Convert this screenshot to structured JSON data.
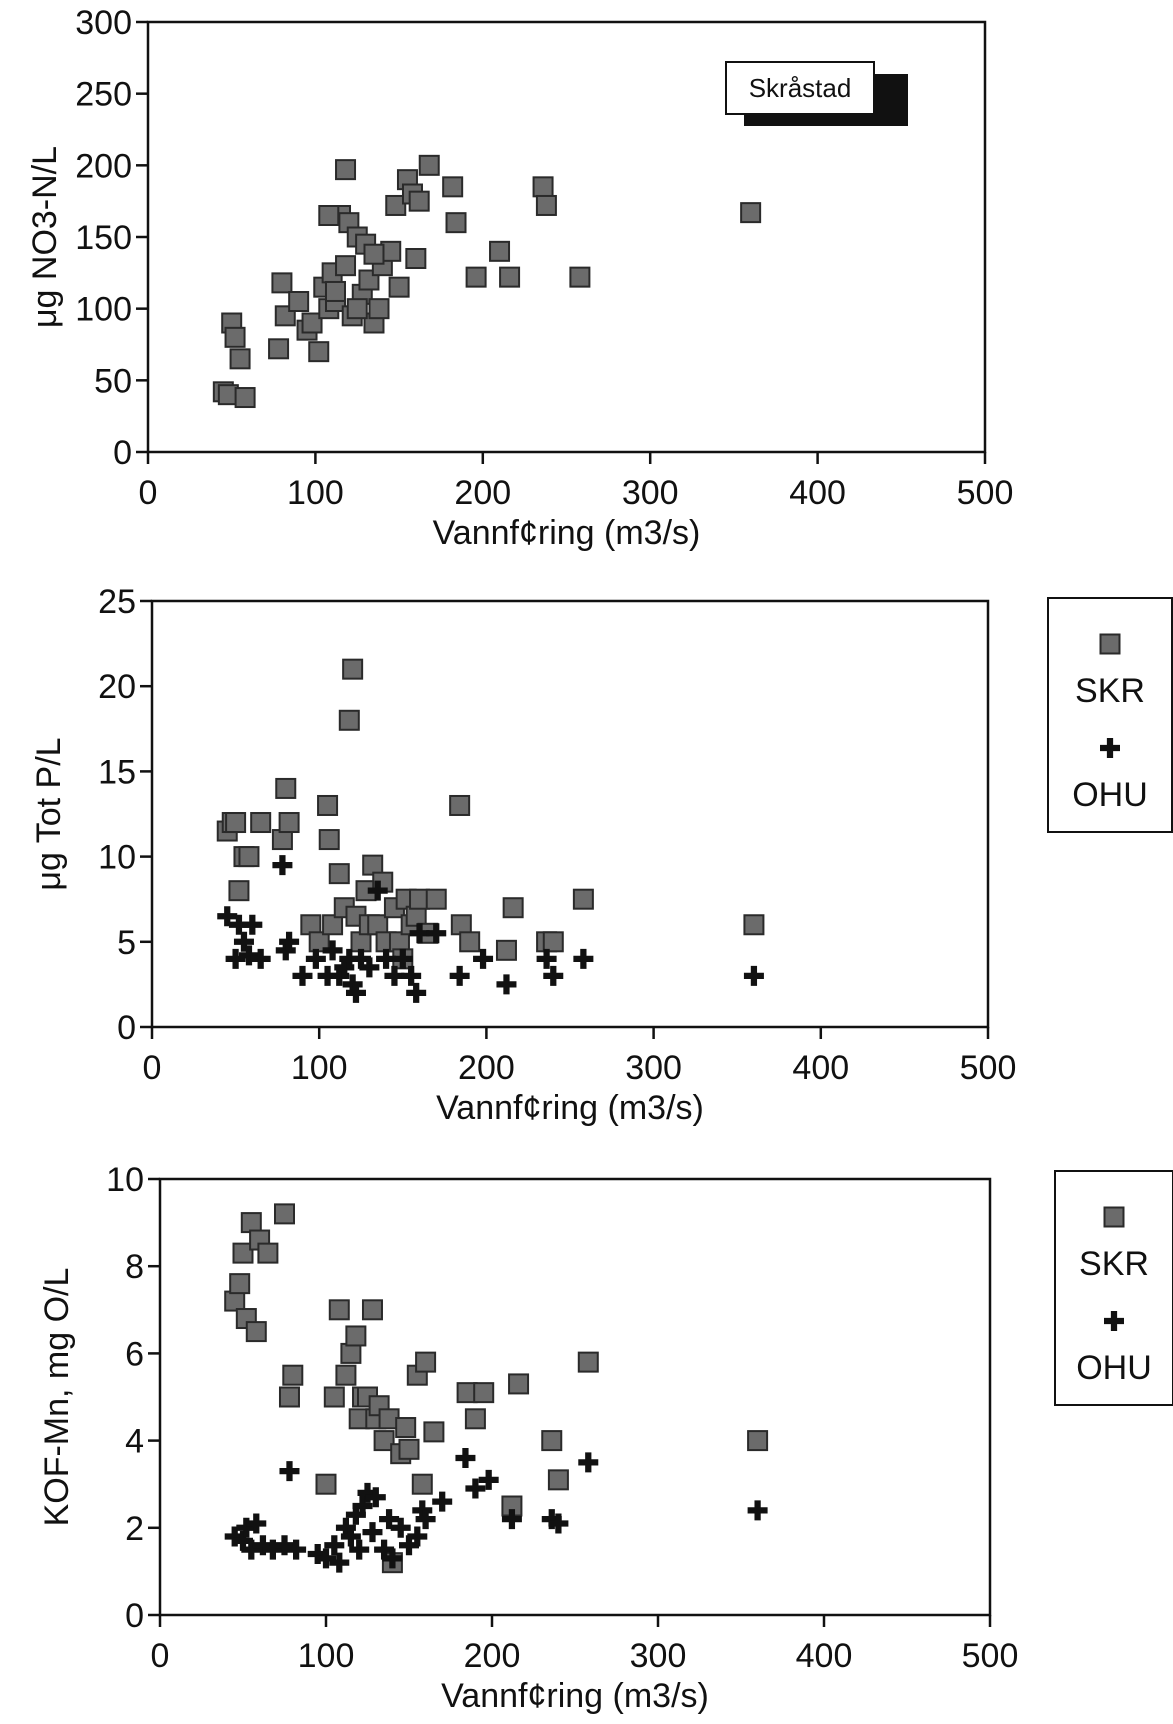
{
  "chart_data": [
    {
      "type": "scatter",
      "xlabel": "Vannf¢ring (m3/s)",
      "ylabel": "μg NO3-N/L",
      "xlim": [
        0,
        500
      ],
      "ylim": [
        0,
        300
      ],
      "xticks": [
        0,
        100,
        200,
        300,
        400,
        500
      ],
      "yticks": [
        0,
        50,
        100,
        150,
        200,
        250,
        300
      ],
      "grid": false,
      "inset_label": "Skråstad",
      "series": [
        {
          "marker": "square",
          "x": [
            45,
            48,
            50,
            52,
            55,
            58,
            78,
            80,
            82,
            90,
            95,
            98,
            102,
            105,
            108,
            110,
            112,
            115,
            118,
            120,
            122,
            125,
            128,
            130,
            132,
            135,
            138,
            140,
            145,
            148,
            150,
            155,
            158,
            160,
            162,
            168,
            182,
            184,
            210,
            196,
            216,
            236,
            238,
            258,
            360,
            118,
            112,
            108,
            125,
            135
          ],
          "y": [
            42,
            40,
            90,
            80,
            65,
            38,
            72,
            118,
            95,
            105,
            85,
            90,
            70,
            115,
            100,
            125,
            105,
            165,
            197,
            160,
            95,
            150,
            110,
            145,
            120,
            90,
            100,
            130,
            140,
            172,
            115,
            190,
            180,
            135,
            175,
            200,
            185,
            160,
            140,
            122,
            122,
            185,
            172,
            122,
            167,
            130,
            112,
            165,
            100,
            138
          ]
        }
      ]
    },
    {
      "type": "scatter",
      "xlabel": "Vannf¢ring (m3/s)",
      "ylabel": "μg Tot P/L",
      "xlim": [
        0,
        500
      ],
      "ylim": [
        0,
        25
      ],
      "xticks": [
        0,
        100,
        200,
        300,
        400,
        500
      ],
      "yticks": [
        0,
        5,
        10,
        15,
        20,
        25
      ],
      "grid": false,
      "legend": "right",
      "series": [
        {
          "name": "SKR",
          "marker": "square",
          "x": [
            45,
            48,
            50,
            52,
            55,
            58,
            65,
            78,
            80,
            82,
            95,
            100,
            105,
            106,
            108,
            112,
            115,
            118,
            120,
            122,
            125,
            128,
            130,
            132,
            135,
            138,
            140,
            145,
            148,
            150,
            152,
            155,
            158,
            160,
            165,
            170,
            184,
            185,
            190,
            212,
            216,
            236,
            240,
            258,
            360
          ],
          "y": [
            11.5,
            12,
            12,
            8,
            10,
            10,
            12,
            11,
            14,
            12,
            6,
            5,
            13,
            11,
            6,
            9,
            7,
            18,
            21,
            6.5,
            5,
            8,
            6,
            9.5,
            6,
            8.5,
            5,
            7,
            5,
            4,
            7.5,
            6,
            6.5,
            7.5,
            5.5,
            7.5,
            13,
            6,
            5,
            4.5,
            7,
            5,
            5,
            7.5,
            6
          ]
        },
        {
          "name": "OHU",
          "marker": "plus",
          "x": [
            45,
            50,
            52,
            55,
            58,
            60,
            65,
            78,
            80,
            82,
            90,
            98,
            105,
            108,
            112,
            115,
            118,
            120,
            122,
            125,
            130,
            135,
            140,
            145,
            150,
            155,
            158,
            160,
            170,
            184,
            198,
            212,
            236,
            240,
            258,
            360
          ],
          "y": [
            6.5,
            4,
            6,
            5,
            4.2,
            6,
            4,
            9.5,
            4.5,
            5,
            3,
            4,
            3,
            4.5,
            3,
            3.5,
            4,
            2.5,
            2,
            4,
            3.5,
            8,
            4,
            3,
            4,
            3,
            2,
            5.5,
            5.5,
            3,
            4,
            2.5,
            4,
            3,
            4,
            3
          ]
        }
      ]
    },
    {
      "type": "scatter",
      "xlabel": "Vannf¢ring (m3/s)",
      "ylabel": "KOF-Mn, mg O/L",
      "xlim": [
        0,
        500
      ],
      "ylim": [
        0,
        10
      ],
      "xticks": [
        0,
        100,
        200,
        300,
        400,
        500
      ],
      "yticks": [
        0,
        2,
        4,
        6,
        8,
        10
      ],
      "grid": false,
      "legend": "right",
      "series": [
        {
          "name": "SKR",
          "marker": "square",
          "x": [
            45,
            48,
            50,
            52,
            55,
            58,
            60,
            65,
            75,
            78,
            80,
            100,
            105,
            108,
            112,
            115,
            118,
            120,
            122,
            125,
            128,
            130,
            132,
            135,
            138,
            140,
            145,
            148,
            150,
            155,
            158,
            160,
            165,
            185,
            190,
            195,
            212,
            216,
            236,
            240,
            258,
            360
          ],
          "y": [
            7.2,
            7.6,
            8.3,
            6.8,
            9,
            6.5,
            8.6,
            8.3,
            9.2,
            5,
            5.5,
            3,
            5,
            7,
            5.5,
            6,
            6.4,
            4.5,
            5,
            5,
            7,
            4.5,
            4.8,
            4,
            4.5,
            1.2,
            3.7,
            4.3,
            3.8,
            5.5,
            3,
            5.8,
            4.2,
            5.1,
            4.5,
            5.1,
            2.5,
            5.3,
            4,
            3.1,
            5.8,
            4
          ]
        },
        {
          "name": "OHU",
          "marker": "plus",
          "x": [
            45,
            50,
            52,
            55,
            58,
            62,
            68,
            75,
            78,
            82,
            95,
            100,
            105,
            108,
            112,
            115,
            118,
            120,
            122,
            125,
            128,
            130,
            135,
            138,
            140,
            145,
            150,
            155,
            158,
            160,
            170,
            184,
            190,
            198,
            212,
            236,
            240,
            258,
            360
          ],
          "y": [
            1.8,
            1.7,
            2,
            1.5,
            2.1,
            1.6,
            1.5,
            1.6,
            3.3,
            1.5,
            1.4,
            1.3,
            1.6,
            1.2,
            2,
            1.8,
            2.3,
            1.5,
            2.5,
            2.8,
            1.9,
            2.7,
            1.5,
            2.2,
            1.3,
            2,
            1.6,
            1.8,
            2.4,
            2.2,
            2.6,
            3.6,
            2.9,
            3.1,
            2.2,
            2.2,
            2.1,
            3.5,
            2.4
          ]
        }
      ]
    }
  ]
}
